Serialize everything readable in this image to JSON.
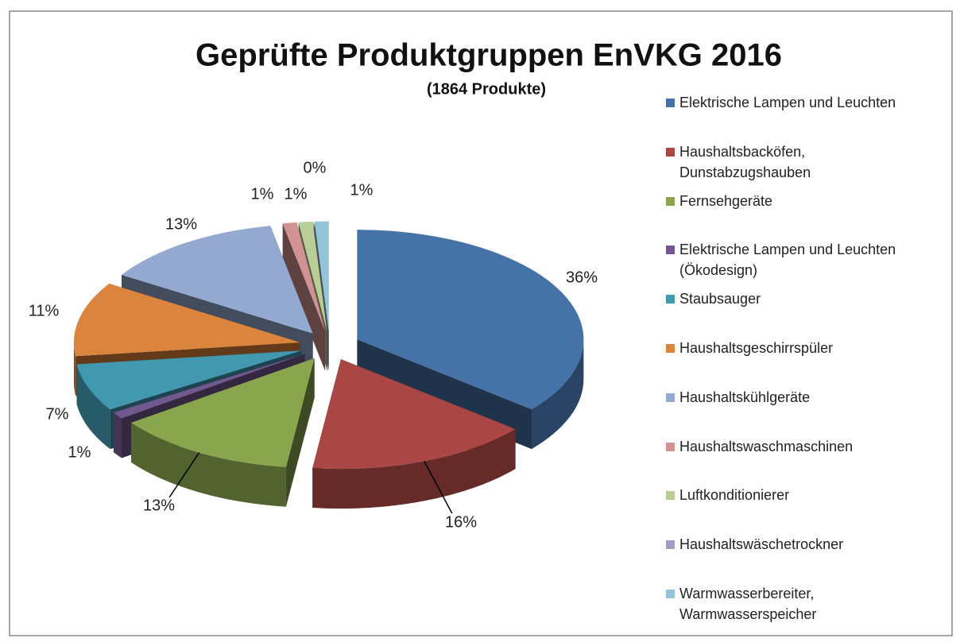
{
  "chart_data": {
    "type": "pie3d",
    "title": "Geprüfte Produktgruppen EnVKG 2016",
    "subtitle": "(1864 Produkte)",
    "categories": [
      "Elektrische Lampen und Leuchten",
      "Haushaltsbacköfen, Dunstabzugshauben",
      "Fernsehgeräte",
      "Elektrische Lampen und Leuchten (Ökodesign)",
      "Staubsauger",
      "Haushaltsgeschirrspüler",
      "Haushaltskühlgeräte",
      "Haushaltswaschmaschinen",
      "Luftkonditionierer",
      "Haushaltswäschetrockner",
      "Warmwasserbereiter, Warmwasserspeicher"
    ],
    "values": [
      36,
      16,
      13,
      1,
      7,
      11,
      13,
      1,
      1,
      0,
      1
    ],
    "value_labels": [
      "36%",
      "16%",
      "13%",
      "1%",
      "7%",
      "11%",
      "13%",
      "1%",
      "1%",
      "0%",
      "1%"
    ],
    "colors": [
      "#4572a7",
      "#aa4643",
      "#89a54e",
      "#71588f",
      "#4198af",
      "#db843d",
      "#93a9cf",
      "#d19392",
      "#b9cd96",
      "#a99bbd",
      "#92c5d8"
    ],
    "legend": "right"
  }
}
